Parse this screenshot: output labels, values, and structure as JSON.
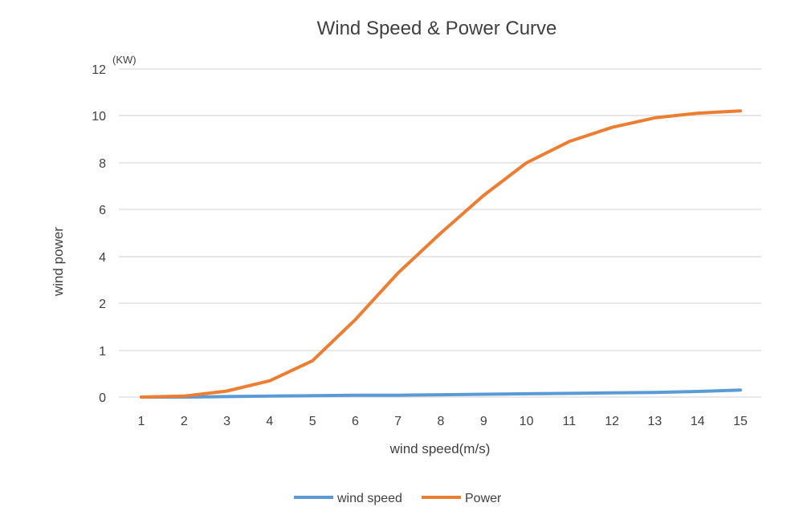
{
  "chart_data": {
    "type": "line",
    "title": "Wind Speed & Power Curve",
    "xlabel": "wind speed(m/s)",
    "ylabel": "wind power",
    "y_unit": "(KW)",
    "categories": [
      "1",
      "2",
      "3",
      "4",
      "5",
      "6",
      "7",
      "8",
      "9",
      "10",
      "11",
      "12",
      "13",
      "14",
      "15"
    ],
    "y_tick_labels": [
      "0",
      "1",
      "2",
      "4",
      "6",
      "8",
      "10",
      "12"
    ],
    "grid": true,
    "legend_position": "bottom",
    "series": [
      {
        "name": "wind speed",
        "color": "#5b9bd5",
        "values": [
          0.0,
          0.0,
          0.01,
          0.02,
          0.03,
          0.04,
          0.04,
          0.05,
          0.06,
          0.07,
          0.08,
          0.09,
          0.1,
          0.12,
          0.15
        ]
      },
      {
        "name": "Power",
        "color": "#ed7d31",
        "values": [
          0.0,
          0.02,
          0.13,
          0.35,
          0.78,
          1.65,
          3.3,
          5.0,
          6.6,
          8.0,
          8.9,
          9.5,
          9.9,
          10.1,
          10.2
        ]
      }
    ]
  }
}
